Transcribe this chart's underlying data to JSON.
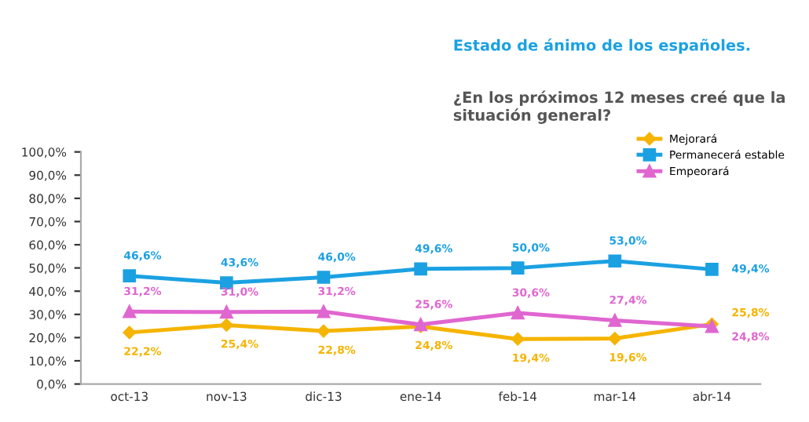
{
  "chart_data": {
    "type": "line",
    "title": "Estado de ánimo de los españoles.",
    "subtitle": "¿En los próximos 12 meses creé que la situación general?",
    "categories": [
      "oct-13",
      "nov-13",
      "dic-13",
      "ene-14",
      "feb-14",
      "mar-14",
      "abr-14"
    ],
    "series": [
      {
        "name": "Mejorará",
        "color": "#f5b400",
        "marker": "diamond",
        "values": [
          22.2,
          25.4,
          22.8,
          24.8,
          19.4,
          19.6,
          25.8
        ],
        "value_labels": [
          "22,2%",
          "25,4%",
          "22,8%",
          "24,8%",
          "19,4%",
          "19,6%",
          "25,8%"
        ]
      },
      {
        "name": "Permanecerá estable",
        "color": "#1ba1e2",
        "marker": "square",
        "values": [
          46.6,
          43.6,
          46.0,
          49.6,
          50.0,
          53.0,
          49.4
        ],
        "value_labels": [
          "46,6%",
          "43,6%",
          "46,0%",
          "49,6%",
          "50,0%",
          "53,0%",
          "49,4%"
        ]
      },
      {
        "name": "Empeorará",
        "color": "#e066d0",
        "marker": "triangle",
        "values": [
          31.2,
          31.0,
          31.2,
          25.6,
          30.6,
          27.4,
          24.8
        ],
        "value_labels": [
          "31,2%",
          "31,0%",
          "31,2%",
          "25,6%",
          "30,6%",
          "27,4%",
          "24,8%"
        ]
      }
    ],
    "ylim": [
      0,
      100
    ],
    "yticks": [
      {
        "value": 0,
        "label": "0,0%"
      },
      {
        "value": 10,
        "label": "10,0%"
      },
      {
        "value": 20,
        "label": "20,0%"
      },
      {
        "value": 30,
        "label": "30,0%"
      },
      {
        "value": 40,
        "label": "40,0%"
      },
      {
        "value": 50,
        "label": "50,0%"
      },
      {
        "value": 60,
        "label": "60,0%"
      },
      {
        "value": 70,
        "label": "70,0%"
      },
      {
        "value": 80,
        "label": "80,0%"
      },
      {
        "value": 90,
        "label": "90,0%"
      },
      {
        "value": 100,
        "label": "100,0%"
      }
    ],
    "grid": false,
    "legend": "top right",
    "line_style": "solid"
  }
}
